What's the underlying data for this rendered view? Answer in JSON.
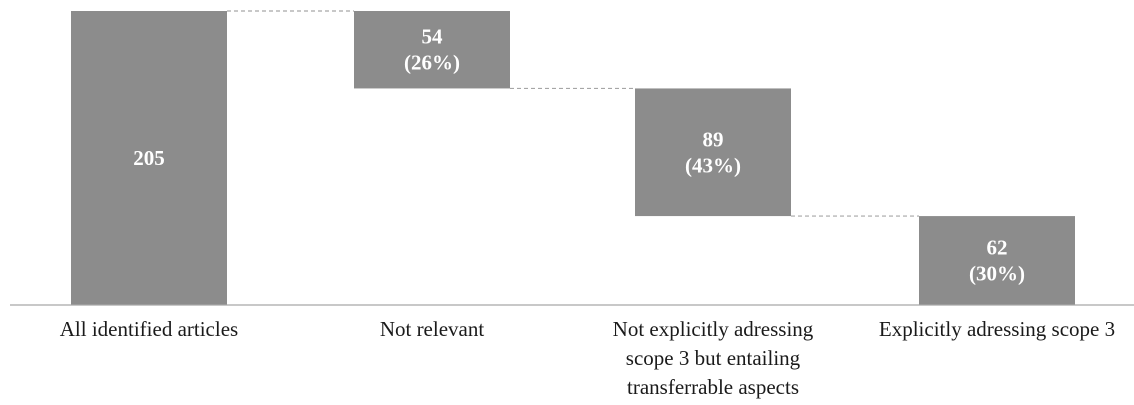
{
  "chart_data": {
    "type": "bar",
    "subtype": "waterfall",
    "categories": [
      "All identified articles",
      "Not relevant",
      "Not explicitly adressing scope 3 but entailing transferrable aspects",
      "Explicitly adressing scope 3"
    ],
    "category_label_lines": [
      [
        "All identified articles"
      ],
      [
        "Not relevant"
      ],
      [
        "Not explicitly adressing",
        "scope 3 but entailing",
        "transferrable aspects"
      ],
      [
        "Explicitly adressing scope 3"
      ]
    ],
    "values": [
      205,
      54,
      89,
      62
    ],
    "percentages": [
      null,
      "(26%)",
      "(43%)",
      "(30%)"
    ],
    "bars": [
      {
        "start": 0,
        "end": 205
      },
      {
        "start": 151,
        "end": 205
      },
      {
        "start": 62,
        "end": 151
      },
      {
        "start": 0,
        "end": 62
      }
    ],
    "data_labels": [
      [
        "205"
      ],
      [
        "54",
        "(26%)"
      ],
      [
        "89",
        "(43%)"
      ],
      [
        "62",
        "(30%)"
      ]
    ],
    "connectors": "dashed",
    "ylim": [
      0,
      205
    ],
    "title": "",
    "xlabel": "",
    "ylabel": "",
    "grid": false,
    "legend": "none",
    "bar_color": "#8c8c8c",
    "connector_color": "#a6a6a6",
    "axis_color": "#a6a6a6",
    "label_text_color": "#ffffff"
  }
}
